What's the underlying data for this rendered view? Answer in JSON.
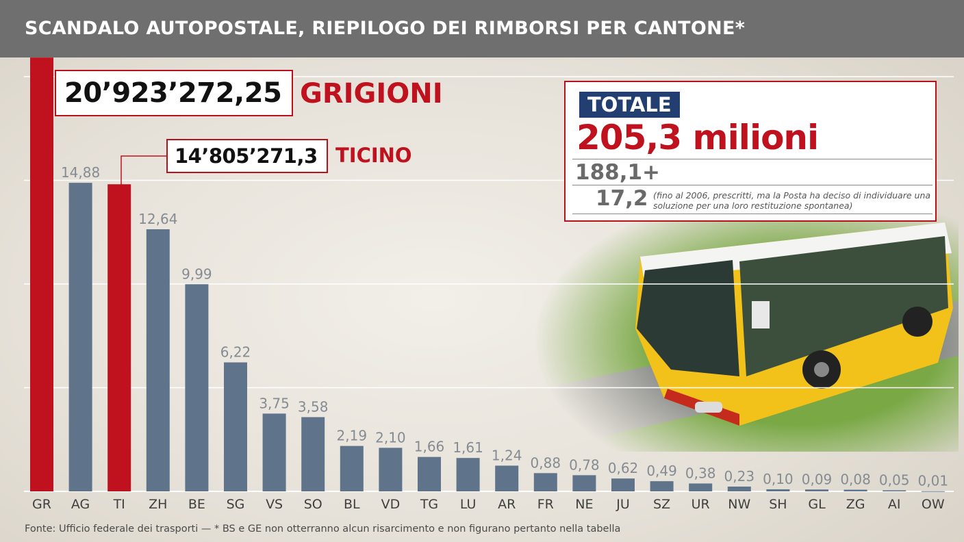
{
  "header": {
    "title": "SCANDALO AUTOPOSTALE, RIEPILOGO DEI RIMBORSI PER CANTONE*"
  },
  "callouts": {
    "grigioni": {
      "value": "20’923’272,25",
      "name": "GRIGIONI"
    },
    "ticino": {
      "value": "14’805’271,3",
      "name": "TICINO"
    }
  },
  "totale": {
    "label": "TOTALE",
    "value": "205,3 milioni",
    "part1": "188,1+",
    "part2": "17,2",
    "note": "(fino al 2006, prescritti, ma la Posta ha deciso di individuare una soluzione per una loro restituzione spontanea)"
  },
  "source": "Fonte: Ufficio federale dei trasporti — * BS e GE  non otterranno alcun risarcimento e non figurano pertanto nella tabella",
  "colors": {
    "header_bg": "#6f6f6f",
    "highlight": "#c0111f",
    "bar": "#5f738b",
    "totale_label_bg": "#233f72"
  },
  "photo": {
    "icon": "postbus-photo"
  },
  "chart_data": {
    "type": "bar",
    "categories": [
      "GR",
      "AG",
      "TI",
      "ZH",
      "BE",
      "SG",
      "VS",
      "SO",
      "BL",
      "VD",
      "TG",
      "LU",
      "AR",
      "FR",
      "NE",
      "JU",
      "SZ",
      "UR",
      "NW",
      "SH",
      "GL",
      "ZG",
      "AI",
      "OW"
    ],
    "values": [
      20.92,
      14.88,
      14.81,
      12.64,
      9.99,
      6.22,
      3.75,
      3.58,
      2.19,
      2.1,
      1.66,
      1.61,
      1.24,
      0.88,
      0.78,
      0.62,
      0.49,
      0.38,
      0.23,
      0.1,
      0.09,
      0.08,
      0.05,
      0.01
    ],
    "value_labels": [
      null,
      "14,88",
      null,
      "12,64",
      "9,99",
      "6,22",
      "3,75",
      "3,58",
      "2,19",
      "2,10",
      "1,66",
      "1,61",
      "1,24",
      "0,88",
      "0,78",
      "0,62",
      "0,49",
      "0,38",
      "0,23",
      "0,10",
      "0,09",
      "0,08",
      "0,05",
      "0,01"
    ],
    "highlighted": [
      "GR",
      "TI"
    ],
    "ylim": [
      0,
      20
    ],
    "ygrid": [
      5,
      10,
      15,
      20
    ],
    "grid": true,
    "xlabel": "",
    "ylabel": ""
  }
}
